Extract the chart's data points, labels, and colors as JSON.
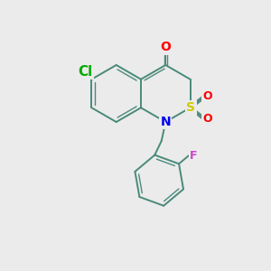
{
  "bg_color": "#ebebeb",
  "bond_color": "#4a8a7a",
  "bond_width": 1.4,
  "atom_colors": {
    "O": "#ff0000",
    "S": "#cccc00",
    "N": "#0000ee",
    "Cl": "#00aa00",
    "F": "#cc44cc"
  },
  "font_size": 10,
  "ring_r": 1.05,
  "fbenz_r": 0.95
}
